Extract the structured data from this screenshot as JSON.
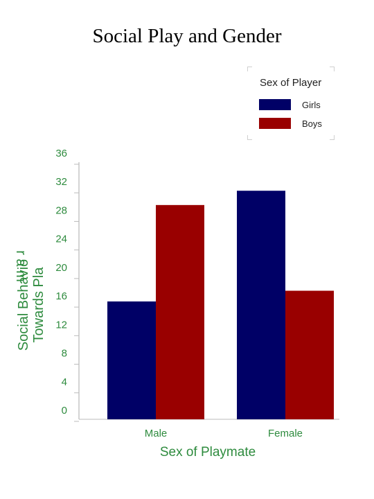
{
  "title": "Social Play and Gender",
  "colors": {
    "girls": "#000066",
    "boys": "#990000",
    "axis_text": "#2e8b3e"
  },
  "chart_data": {
    "type": "bar",
    "categories": [
      "Male",
      "Female"
    ],
    "series": [
      {
        "name": "Girls",
        "values": [
          16.5,
          32
        ]
      },
      {
        "name": "Boys",
        "values": [
          30,
          18
        ]
      }
    ],
    "xlabel": "Sex of Playmate",
    "ylabel_lines": [
      "Social Behavio",
      "Towards Pla"
    ],
    "ylabel_fragment": "r a m",
    "ylim": [
      0,
      36
    ],
    "yticks": [
      0,
      4,
      8,
      12,
      16,
      20,
      24,
      28,
      32,
      36
    ],
    "legend": {
      "title": "Sex of Player",
      "position": "top-right"
    },
    "grid": false
  }
}
